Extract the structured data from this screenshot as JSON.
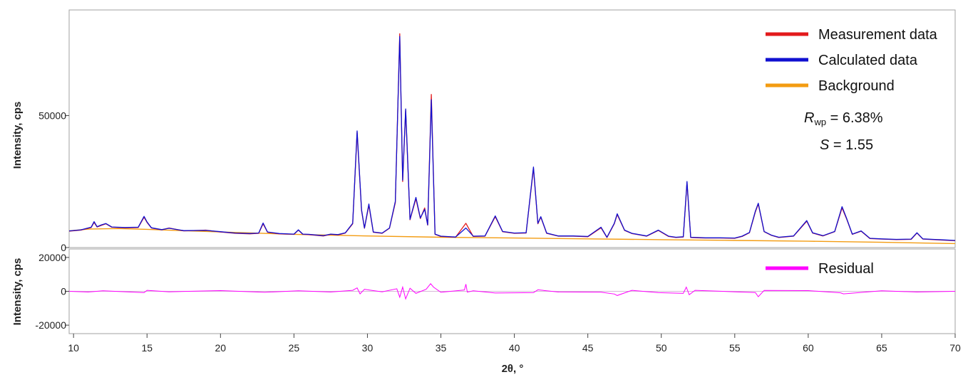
{
  "chart_data": [
    {
      "type": "line",
      "panel": "main",
      "ylabel": "Intensity, cps",
      "xlim": [
        9.7,
        70
      ],
      "ylim": [
        0,
        90000
      ],
      "y_ticks": [
        0,
        50000
      ],
      "grid": false,
      "legend_position": "top-right",
      "series": [
        {
          "name": "Measurement data",
          "color": "#e31a1c",
          "x": [
            9.7,
            10.5,
            11.2,
            11.4,
            11.6,
            11.9,
            12.2,
            12.6,
            13.5,
            14.4,
            14.8,
            15.0,
            15.3,
            16.0,
            16.5,
            17.5,
            19.0,
            20.0,
            21.0,
            22.0,
            22.6,
            22.9,
            23.2,
            24.0,
            25.0,
            25.3,
            25.6,
            26.0,
            27.0,
            27.5,
            28.0,
            28.5,
            29.0,
            29.3,
            29.6,
            29.8,
            30.1,
            30.4,
            31.0,
            31.5,
            31.9,
            32.2,
            32.4,
            32.6,
            32.9,
            33.3,
            33.6,
            33.9,
            34.1,
            34.35,
            34.6,
            35.0,
            36.0,
            36.7,
            37.2,
            38.0,
            38.7,
            39.2,
            40.0,
            40.8,
            41.3,
            41.6,
            41.8,
            42.2,
            43.0,
            44.0,
            45.0,
            45.9,
            46.3,
            46.8,
            47.0,
            47.5,
            48.0,
            49.0,
            49.8,
            50.5,
            51.0,
            51.5,
            51.75,
            52.0,
            52.5,
            53.0,
            54.0,
            55.0,
            55.5,
            56.0,
            56.4,
            56.6,
            57.0,
            57.5,
            58.0,
            59.0,
            59.9,
            60.3,
            61.0,
            61.8,
            62.3,
            62.6,
            63.0,
            63.6,
            64.2,
            65.0,
            66.0,
            67.0,
            67.4,
            67.8,
            68.5,
            69.2,
            70.0
          ],
          "y": [
            6200,
            6600,
            7600,
            9500,
            7800,
            8400,
            9000,
            7700,
            7500,
            7600,
            11500,
            9500,
            7400,
            6700,
            7400,
            6300,
            6600,
            5900,
            5400,
            5200,
            5400,
            9000,
            5800,
            5200,
            5000,
            6600,
            5000,
            4900,
            4400,
            5000,
            4800,
            5500,
            9000,
            43600,
            14000,
            7300,
            16000,
            5800,
            5400,
            7300,
            17000,
            81000,
            25000,
            52000,
            10500,
            18500,
            11000,
            15000,
            8500,
            58000,
            5000,
            4200,
            3900,
            9200,
            4200,
            4300,
            11700,
            6000,
            5400,
            5500,
            30000,
            9000,
            11500,
            5400,
            4300,
            4300,
            4100,
            7500,
            3800,
            9000,
            12500,
            6500,
            5300,
            4300,
            6500,
            4200,
            3800,
            4000,
            24500,
            3800,
            3700,
            3600,
            3600,
            3500,
            4200,
            5600,
            13500,
            16500,
            6000,
            4600,
            3800,
            4300,
            10000,
            5500,
            4400,
            6000,
            15000,
            11000,
            5000,
            6200,
            3400,
            3200,
            3000,
            3100,
            5500,
            3200,
            3000,
            2800,
            2600
          ]
        },
        {
          "name": "Calculated data",
          "color": "#1010d0",
          "x": [
            9.7,
            10.5,
            11.2,
            11.4,
            11.6,
            11.9,
            12.2,
            12.6,
            13.5,
            14.4,
            14.8,
            15.0,
            15.3,
            16.0,
            16.5,
            17.5,
            19.0,
            20.0,
            21.0,
            22.0,
            22.6,
            22.9,
            23.2,
            24.0,
            25.0,
            25.3,
            25.6,
            26.0,
            27.0,
            27.5,
            28.0,
            28.5,
            29.0,
            29.3,
            29.6,
            29.8,
            30.1,
            30.4,
            31.0,
            31.5,
            31.9,
            32.2,
            32.4,
            32.6,
            32.9,
            33.3,
            33.6,
            33.9,
            34.1,
            34.35,
            34.6,
            35.0,
            36.0,
            36.7,
            37.2,
            38.0,
            38.7,
            39.2,
            40.0,
            40.8,
            41.3,
            41.6,
            41.8,
            42.2,
            43.0,
            44.0,
            45.0,
            45.9,
            46.3,
            46.8,
            47.0,
            47.5,
            48.0,
            49.0,
            49.8,
            50.5,
            51.0,
            51.5,
            51.75,
            52.0,
            52.5,
            53.0,
            54.0,
            55.0,
            55.5,
            56.0,
            56.4,
            56.6,
            57.0,
            57.5,
            58.0,
            59.0,
            59.9,
            60.3,
            61.0,
            61.8,
            62.3,
            62.6,
            63.0,
            63.6,
            64.2,
            65.0,
            66.0,
            67.0,
            67.4,
            67.8,
            68.5,
            69.2,
            70.0
          ],
          "y": [
            6300,
            6700,
            7700,
            9800,
            7900,
            8600,
            9100,
            7800,
            7600,
            7700,
            11800,
            9700,
            7500,
            6800,
            7300,
            6400,
            6500,
            6000,
            5500,
            5300,
            5500,
            9300,
            5900,
            5300,
            5100,
            6700,
            5100,
            5000,
            4500,
            5100,
            4900,
            5600,
            9200,
            44200,
            14300,
            7400,
            16500,
            5900,
            5500,
            7400,
            17500,
            80000,
            25500,
            52500,
            10700,
            19000,
            11200,
            14500,
            8600,
            56000,
            5100,
            4300,
            4000,
            7400,
            4300,
            4400,
            12000,
            6100,
            5500,
            5600,
            30500,
            9200,
            11700,
            5500,
            4400,
            4400,
            4200,
            7700,
            3900,
            9200,
            12800,
            6600,
            5400,
            4400,
            6600,
            4300,
            3900,
            4100,
            25000,
            3900,
            3800,
            3700,
            3700,
            3600,
            4300,
            5700,
            13800,
            16800,
            6100,
            4700,
            3900,
            4400,
            10200,
            5600,
            4500,
            6100,
            15500,
            11200,
            5100,
            6300,
            3500,
            3300,
            3100,
            3200,
            5600,
            3300,
            3100,
            2900,
            2700
          ]
        },
        {
          "name": "Background",
          "color": "#f39c12",
          "x": [
            9.7,
            11.0,
            13.0,
            15.0,
            17.0,
            20.0,
            25.0,
            30.0,
            35.0,
            40.0,
            45.0,
            50.0,
            55.0,
            60.0,
            65.0,
            70.0
          ],
          "y": [
            6300,
            7000,
            7200,
            6900,
            6500,
            5900,
            5000,
            4400,
            3900,
            3600,
            3300,
            3000,
            2700,
            2400,
            2000,
            1500
          ]
        }
      ],
      "annotations": [
        {
          "symbol": "R",
          "subscript": "wp",
          "text": " = 6.38%"
        },
        {
          "symbol": "S",
          "text": " = 1.55"
        }
      ]
    },
    {
      "type": "line",
      "panel": "residual",
      "xlabel": "2θ, °",
      "ylabel": "Intensity, cps",
      "xlim": [
        9.7,
        70
      ],
      "ylim": [
        -25000,
        25000
      ],
      "y_ticks": [
        -20000,
        0,
        20000
      ],
      "x_ticks": [
        10,
        15,
        20,
        25,
        30,
        35,
        40,
        45,
        50,
        55,
        60,
        65,
        70
      ],
      "grid": false,
      "legend_position": "top-right",
      "series": [
        {
          "name": "Residual",
          "color": "#ff00ff",
          "x": [
            9.7,
            11.0,
            12.0,
            14.8,
            15.0,
            16.5,
            20.0,
            23.0,
            25.3,
            27.5,
            29.0,
            29.3,
            29.5,
            29.8,
            30.1,
            31.0,
            32.0,
            32.2,
            32.4,
            32.6,
            32.9,
            33.3,
            34.0,
            34.3,
            34.5,
            35.0,
            36.6,
            36.7,
            36.8,
            37.2,
            38.7,
            41.3,
            41.6,
            43.0,
            45.9,
            46.8,
            47.0,
            48.0,
            49.8,
            51.5,
            51.7,
            51.9,
            52.3,
            55.0,
            56.4,
            56.6,
            57.0,
            60.0,
            62.2,
            62.4,
            65.0,
            67.4,
            70.0
          ],
          "y": [
            0,
            -400,
            300,
            -800,
            600,
            -300,
            400,
            -600,
            300,
            -400,
            600,
            2000,
            -1500,
            1200,
            800,
            -300,
            1500,
            -3500,
            2500,
            -4500,
            1800,
            -1200,
            1200,
            4500,
            2500,
            -600,
            800,
            4200,
            -500,
            300,
            -1000,
            -800,
            900,
            -400,
            -500,
            -1600,
            -2500,
            600,
            -800,
            -1200,
            2500,
            -2000,
            600,
            -300,
            -700,
            -3200,
            500,
            400,
            -900,
            -1500,
            300,
            -400,
            0
          ]
        }
      ]
    }
  ]
}
